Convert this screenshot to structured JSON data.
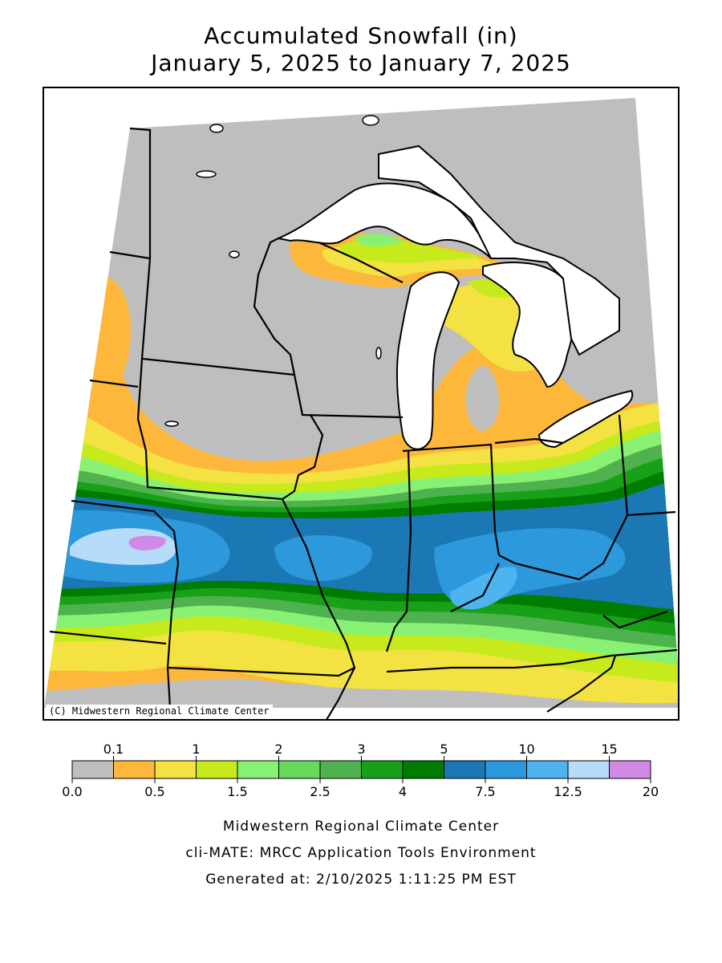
{
  "title": {
    "line1": "Accumulated Snowfall (in)",
    "line2": "January 5, 2025 to January 7, 2025"
  },
  "credit": "(C) Midwestern Regional Climate Center",
  "legend": {
    "top_labels": [
      "0.1",
      "1",
      "2",
      "3",
      "5",
      "10",
      "15"
    ],
    "bottom_labels": [
      "0.0",
      "0.5",
      "1.5",
      "2.5",
      "4",
      "7.5",
      "12.5",
      "20"
    ],
    "colors": [
      "#bebebe",
      "#fdb73b",
      "#f4e242",
      "#c6ea1c",
      "#88f173",
      "#66d95a",
      "#4fb24f",
      "#18a118",
      "#007d00",
      "#1c78b4",
      "#2b99dc",
      "#4db4f0",
      "#b6dcfa",
      "#d08ae6"
    ]
  },
  "footer": {
    "line1": "Midwestern Regional Climate Center",
    "line2": "cli-MATE: MRCC Application Tools Environment",
    "line3": "Generated at: 2/10/2025 1:11:25 PM EST"
  }
}
